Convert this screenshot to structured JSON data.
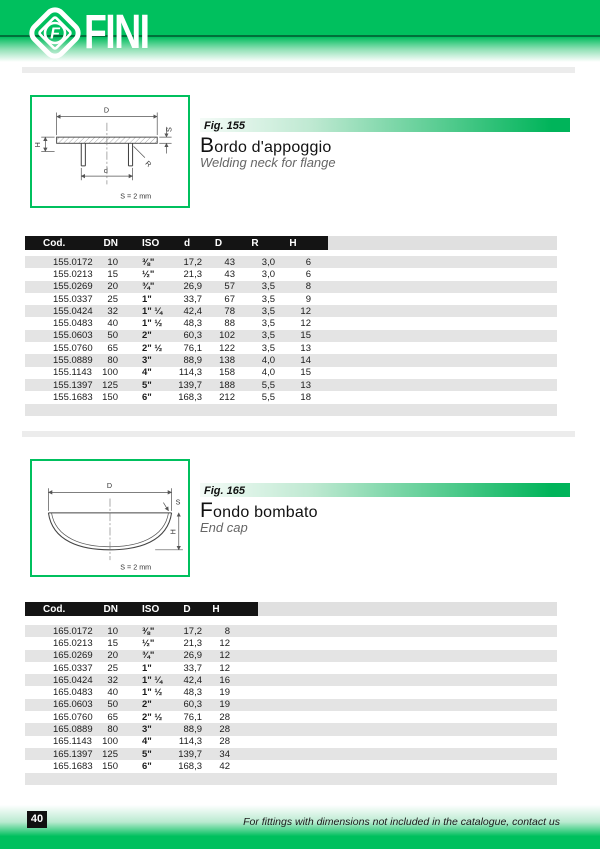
{
  "header": {
    "brand": "FINI",
    "logo_letter": "F"
  },
  "sections": [
    {
      "fig_label": "Fig. 155",
      "title": "Bordo d'appoggio",
      "subtitle": "Welding neck for flange",
      "diagram": {
        "labels": {
          "D": "D",
          "H": "H",
          "d": "d",
          "R": "R",
          "S": "S"
        },
        "note": "S = 2 mm"
      },
      "table": {
        "columns": [
          "Cod.",
          "DN",
          "ISO",
          "d",
          "D",
          "R",
          "H"
        ],
        "rows": [
          [
            "155.0172",
            "10",
            "⅜\"",
            "17,2",
            "43",
            "3,0",
            "6"
          ],
          [
            "155.0213",
            "15",
            "½\"",
            "21,3",
            "43",
            "3,0",
            "6"
          ],
          [
            "155.0269",
            "20",
            "¾\"",
            "26,9",
            "57",
            "3,5",
            "8"
          ],
          [
            "155.0337",
            "25",
            "1\"",
            "33,7",
            "67",
            "3,5",
            "9"
          ],
          [
            "155.0424",
            "32",
            "1\" ¼",
            "42,4",
            "78",
            "3,5",
            "12"
          ],
          [
            "155.0483",
            "40",
            "1\" ½",
            "48,3",
            "88",
            "3,5",
            "12"
          ],
          [
            "155.0603",
            "50",
            "2\"",
            "60,3",
            "102",
            "3,5",
            "15"
          ],
          [
            "155.0760",
            "65",
            "2\" ½",
            "76,1",
            "122",
            "3,5",
            "13"
          ],
          [
            "155.0889",
            "80",
            "3\"",
            "88,9",
            "138",
            "4,0",
            "14"
          ],
          [
            "155.1143",
            "100",
            "4\"",
            "114,3",
            "158",
            "4,0",
            "15"
          ],
          [
            "155.1397",
            "125",
            "5\"",
            "139,7",
            "188",
            "5,5",
            "13"
          ],
          [
            "155.1683",
            "150",
            "6\"",
            "168,3",
            "212",
            "5,5",
            "18"
          ]
        ]
      }
    },
    {
      "fig_label": "Fig. 165",
      "title": "Fondo bombato",
      "subtitle": "End cap",
      "diagram": {
        "labels": {
          "D": "D",
          "H": "H",
          "S": "S"
        },
        "note": "S = 2 mm"
      },
      "table": {
        "columns": [
          "Cod.",
          "DN",
          "ISO",
          "D",
          "H"
        ],
        "rows": [
          [
            "165.0172",
            "10",
            "⅜\"",
            "17,2",
            "8"
          ],
          [
            "165.0213",
            "15",
            "½\"",
            "21,3",
            "12"
          ],
          [
            "165.0269",
            "20",
            "¾\"",
            "26,9",
            "12"
          ],
          [
            "165.0337",
            "25",
            "1\"",
            "33,7",
            "12"
          ],
          [
            "165.0424",
            "32",
            "1\" ¼",
            "42,4",
            "16"
          ],
          [
            "165.0483",
            "40",
            "1\" ½",
            "48,3",
            "19"
          ],
          [
            "165.0603",
            "50",
            "2\"",
            "60,3",
            "19"
          ],
          [
            "165.0760",
            "65",
            "2\" ½",
            "76,1",
            "28"
          ],
          [
            "165.0889",
            "80",
            "3\"",
            "88,9",
            "28"
          ],
          [
            "165.1143",
            "100",
            "4\"",
            "114,3",
            "28"
          ],
          [
            "165.1397",
            "125",
            "5\"",
            "139,7",
            "34"
          ],
          [
            "165.1683",
            "150",
            "6\"",
            "168,3",
            "42"
          ]
        ]
      }
    }
  ],
  "footer": {
    "page_number": "40",
    "note": "For fittings with dimensions not included in the catalogue, contact us"
  },
  "colors": {
    "brand_green": "#00c05e",
    "dark_green": "#00703a",
    "table_header_bg": "#141414",
    "row_stripe": "#e4e4e4"
  }
}
